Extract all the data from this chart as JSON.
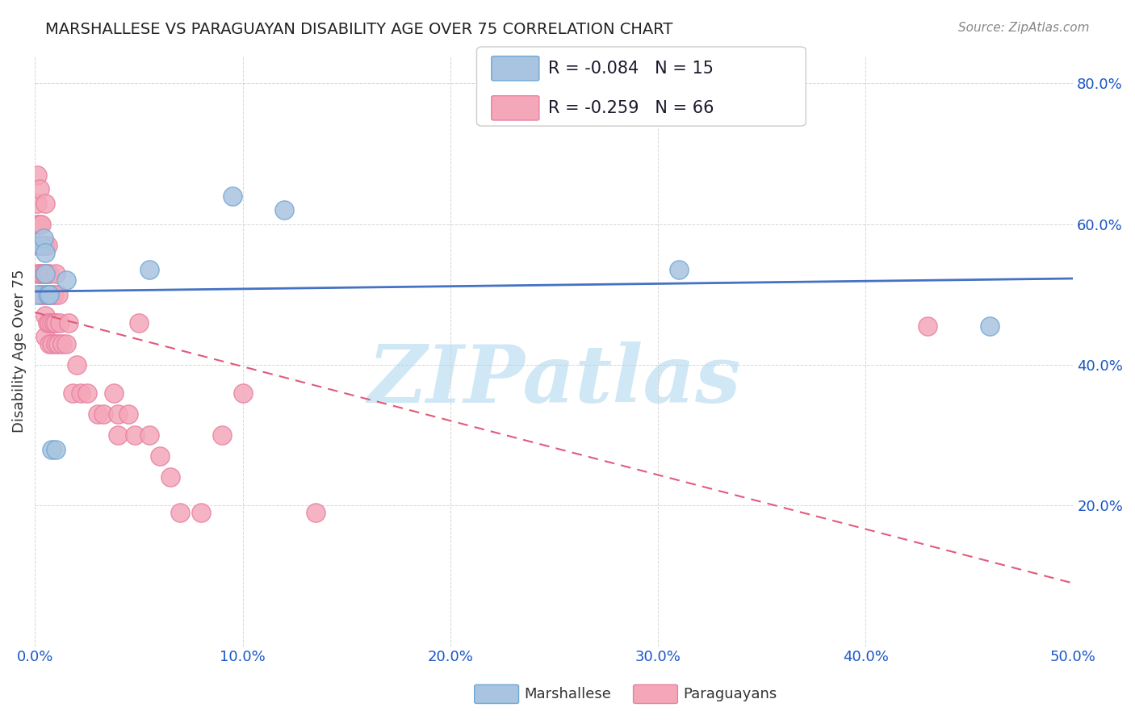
{
  "title": "MARSHALLESE VS PARAGUAYAN DISABILITY AGE OVER 75 CORRELATION CHART",
  "source": "Source: ZipAtlas.com",
  "ylabel": "Disability Age Over 75",
  "xlabel": "",
  "xlim": [
    0.0,
    0.5
  ],
  "ylim": [
    0.0,
    0.84
  ],
  "xticks": [
    0.0,
    0.1,
    0.2,
    0.3,
    0.4,
    0.5
  ],
  "xtick_labels": [
    "0.0%",
    "10.0%",
    "20.0%",
    "30.0%",
    "40.0%",
    "50.0%"
  ],
  "ytick_positions": [
    0.0,
    0.2,
    0.4,
    0.6,
    0.8
  ],
  "ytick_labels": [
    "",
    "20.0%",
    "40.0%",
    "60.0%",
    "80.0%"
  ],
  "marshallese_color": "#a8c4e0",
  "paraguayan_color": "#f4a7b9",
  "marshallese_edge": "#6fa8d4",
  "paraguayan_edge": "#e87fa0",
  "trend_marshallese_color": "#4472c4",
  "trend_paraguayan_color": "#e05a7a",
  "trend_paraguayan_style": "--",
  "R_marshallese": -0.084,
  "N_marshallese": 15,
  "R_paraguayan": -0.259,
  "N_paraguayan": 66,
  "marshallese_x": [
    0.001,
    0.003,
    0.004,
    0.005,
    0.005,
    0.006,
    0.007,
    0.008,
    0.01,
    0.015,
    0.055,
    0.095,
    0.12,
    0.31,
    0.46
  ],
  "marshallese_y": [
    0.5,
    0.57,
    0.58,
    0.53,
    0.56,
    0.5,
    0.5,
    0.28,
    0.28,
    0.52,
    0.535,
    0.64,
    0.62,
    0.535,
    0.455
  ],
  "paraguayan_x": [
    0.001,
    0.001,
    0.001,
    0.001,
    0.001,
    0.002,
    0.002,
    0.002,
    0.002,
    0.002,
    0.003,
    0.003,
    0.003,
    0.003,
    0.004,
    0.004,
    0.004,
    0.005,
    0.005,
    0.005,
    0.005,
    0.005,
    0.005,
    0.006,
    0.006,
    0.006,
    0.006,
    0.007,
    0.007,
    0.007,
    0.007,
    0.008,
    0.008,
    0.008,
    0.009,
    0.009,
    0.01,
    0.01,
    0.01,
    0.011,
    0.011,
    0.012,
    0.013,
    0.015,
    0.016,
    0.018,
    0.02,
    0.022,
    0.025,
    0.03,
    0.033,
    0.038,
    0.04,
    0.04,
    0.045,
    0.048,
    0.05,
    0.055,
    0.06,
    0.065,
    0.07,
    0.08,
    0.09,
    0.1,
    0.135,
    0.43
  ],
  "paraguayan_y": [
    0.67,
    0.63,
    0.6,
    0.57,
    0.53,
    0.65,
    0.6,
    0.57,
    0.53,
    0.5,
    0.6,
    0.57,
    0.53,
    0.5,
    0.57,
    0.53,
    0.5,
    0.63,
    0.57,
    0.53,
    0.5,
    0.47,
    0.44,
    0.57,
    0.53,
    0.5,
    0.46,
    0.53,
    0.5,
    0.46,
    0.43,
    0.5,
    0.46,
    0.43,
    0.5,
    0.46,
    0.53,
    0.46,
    0.43,
    0.5,
    0.43,
    0.46,
    0.43,
    0.43,
    0.46,
    0.36,
    0.4,
    0.36,
    0.36,
    0.33,
    0.33,
    0.36,
    0.33,
    0.3,
    0.33,
    0.3,
    0.46,
    0.3,
    0.27,
    0.24,
    0.19,
    0.19,
    0.3,
    0.36,
    0.19,
    0.455
  ],
  "background_color": "#ffffff",
  "grid_color": "#cccccc",
  "watermark_text": "ZIPatlas",
  "watermark_color": "#d0e8f5",
  "legend_R_color": "#1a56c4",
  "legend_N_color": "#e05a7a"
}
